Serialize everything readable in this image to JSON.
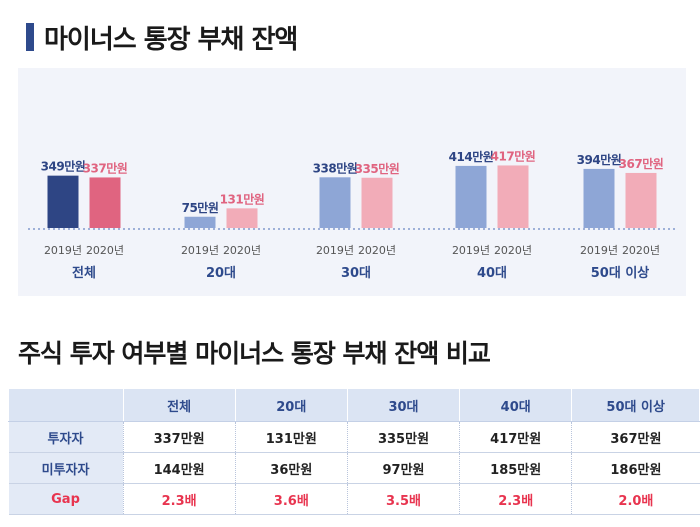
{
  "title_top": "마이너스 통장 부채 잔액",
  "title_bottom": "주식 투자 여부별 마이너스 통장 부채 잔액 비교",
  "colors": {
    "accent": "#2e4a8c",
    "blue_dark": "#2e4584",
    "blue_light": "#8ea6d6",
    "pink_dark": "#e06480",
    "pink_light": "#f2acb8",
    "gap_red": "#e8344f"
  },
  "chart_data": {
    "type": "bar",
    "title": "마이너스 통장 부채 잔액",
    "groups": [
      "전체",
      "20대",
      "30대",
      "40대",
      "50대 이상"
    ],
    "series": [
      {
        "name": "2019년",
        "values": [
          349,
          75,
          338,
          414,
          394
        ],
        "labels": [
          "349만원",
          "75만원",
          "338만원",
          "414만원",
          "394만원"
        ]
      },
      {
        "name": "2020년",
        "values": [
          337,
          131,
          335,
          417,
          367
        ],
        "labels": [
          "337만원",
          "131만원",
          "335만원",
          "417만원",
          "367만원"
        ]
      }
    ],
    "unit": "만원",
    "grid": false,
    "legend": "none"
  },
  "table": {
    "headers": [
      "",
      "전체",
      "20대",
      "30대",
      "40대",
      "50대 이상"
    ],
    "rows": [
      {
        "label": "투자자",
        "values": [
          "337만원",
          "131만원",
          "335만원",
          "417만원",
          "367만원"
        ]
      },
      {
        "label": "미투자자",
        "values": [
          "144만원",
          "36만원",
          "97만원",
          "185만원",
          "186만원"
        ]
      },
      {
        "label": "Gap",
        "values": [
          "2.3배",
          "3.6배",
          "3.5배",
          "2.3배",
          "2.0배"
        ]
      }
    ]
  }
}
